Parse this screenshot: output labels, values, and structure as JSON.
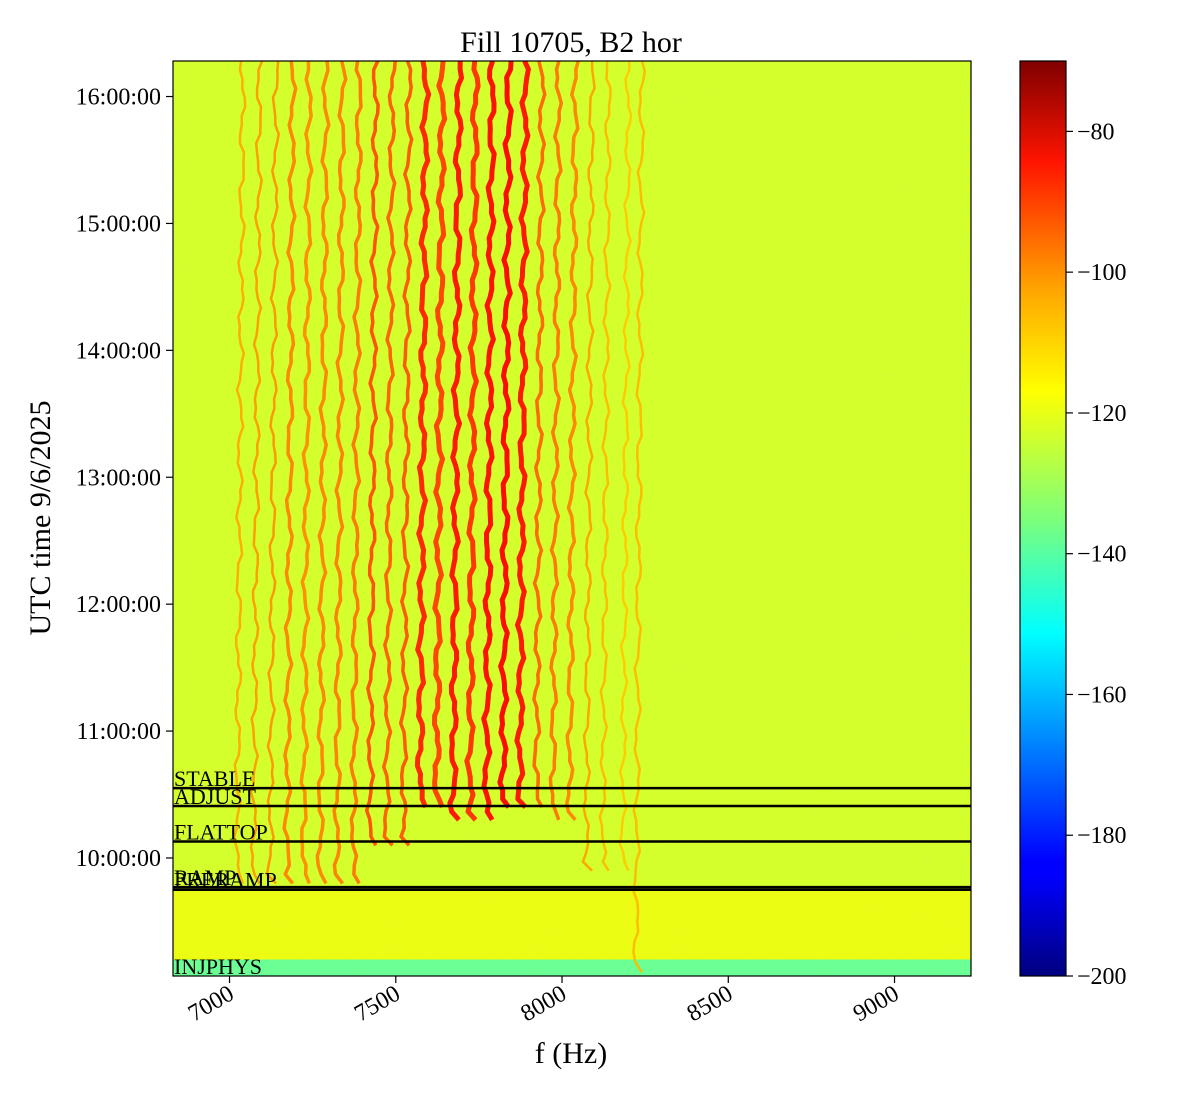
{
  "chart_data": {
    "type": "heatmap",
    "title": "Fill 10705, B2 hor",
    "xlabel": "f (Hz)",
    "ylabel": "UTC time 9/6/2025",
    "xlim": [
      6830,
      9230
    ],
    "ylim_hours": [
      9.07,
      16.28
    ],
    "x_ticks": [
      7000,
      7500,
      8000,
      8500,
      9000
    ],
    "y_ticks": [
      {
        "hours": 10,
        "label": "10:00:00"
      },
      {
        "hours": 11,
        "label": "11:00:00"
      },
      {
        "hours": 12,
        "label": "12:00:00"
      },
      {
        "hours": 13,
        "label": "13:00:00"
      },
      {
        "hours": 14,
        "label": "14:00:00"
      },
      {
        "hours": 15,
        "label": "15:00:00"
      },
      {
        "hours": 16,
        "label": "16:00:00"
      }
    ],
    "colorbar": {
      "colormap": "jet",
      "min": -200,
      "max": -70,
      "ticks": [
        -80,
        -100,
        -120,
        -140,
        -160,
        -180,
        -200
      ],
      "tick_labels": [
        "−80",
        "−100",
        "−120",
        "−140",
        "−160",
        "−180",
        "−200"
      ]
    },
    "background_level": -124,
    "events": [
      {
        "label": "STABLE",
        "hours": 10.55
      },
      {
        "label": "ADJUST",
        "hours": 10.41
      },
      {
        "label": "FLATTOP",
        "hours": 10.13
      },
      {
        "label": "RAMP",
        "hours": 9.77
      },
      {
        "label": "PRERAMP",
        "hours": 9.75
      },
      {
        "label": "INJPHYS",
        "hours": 9.07
      }
    ],
    "lines": [
      {
        "f": 7040,
        "level": -108,
        "start_hours": 9.8
      },
      {
        "f": 7090,
        "level": -106,
        "start_hours": 9.8
      },
      {
        "f": 7140,
        "level": -105,
        "start_hours": 9.8
      },
      {
        "f": 7190,
        "level": -103,
        "start_hours": 9.8
      },
      {
        "f": 7240,
        "level": -104,
        "start_hours": 9.8
      },
      {
        "f": 7290,
        "level": -103,
        "start_hours": 9.8
      },
      {
        "f": 7340,
        "level": -102,
        "start_hours": 9.8
      },
      {
        "f": 7390,
        "level": -101,
        "start_hours": 9.8
      },
      {
        "f": 7440,
        "level": -96,
        "start_hours": 10.1
      },
      {
        "f": 7490,
        "level": -98,
        "start_hours": 10.1
      },
      {
        "f": 7540,
        "level": -97,
        "start_hours": 10.1
      },
      {
        "f": 7590,
        "level": -90,
        "start_hours": 10.4
      },
      {
        "f": 7640,
        "level": -94,
        "start_hours": 10.4
      },
      {
        "f": 7690,
        "level": -88,
        "start_hours": 10.3
      },
      {
        "f": 7740,
        "level": -92,
        "start_hours": 10.3
      },
      {
        "f": 7790,
        "level": -87,
        "start_hours": 10.3
      },
      {
        "f": 7840,
        "level": -86,
        "start_hours": 10.4
      },
      {
        "f": 7890,
        "level": -88,
        "start_hours": 10.4
      },
      {
        "f": 7940,
        "level": -99,
        "start_hours": 10.4
      },
      {
        "f": 7990,
        "level": -101,
        "start_hours": 10.3
      },
      {
        "f": 8040,
        "level": -103,
        "start_hours": 10.3
      },
      {
        "f": 8090,
        "level": -107,
        "start_hours": 9.9
      },
      {
        "f": 8140,
        "level": -110,
        "start_hours": 9.9
      },
      {
        "f": 8200,
        "level": -112,
        "start_hours": 9.9
      },
      {
        "f": 8240,
        "level": -110,
        "start_hours": 9.1
      }
    ]
  }
}
